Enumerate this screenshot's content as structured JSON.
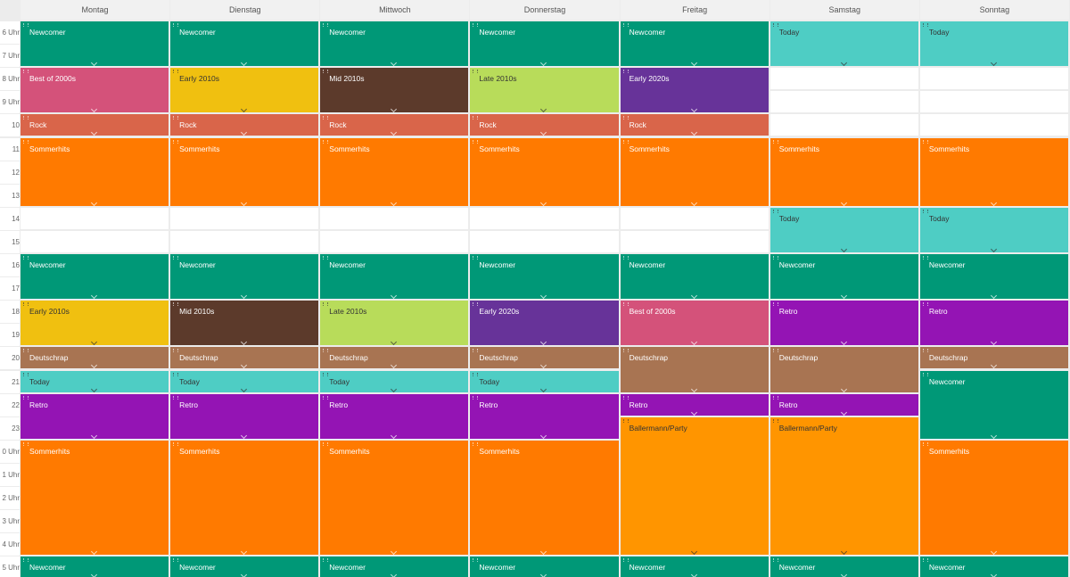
{
  "days": [
    "Montag",
    "Dienstag",
    "Mittwoch",
    "Donnerstag",
    "Freitag",
    "Samstag",
    "Sonntag"
  ],
  "hours": [
    "6 Uhr",
    "7 Uhr",
    "8 Uhr",
    "9 Uhr",
    "10 Uhr",
    "11 Uhr",
    "12 Uhr",
    "13 Uhr",
    "14 Uhr",
    "15 Uhr",
    "16 Uhr",
    "17 Uhr",
    "18 Uhr",
    "19 Uhr",
    "20 Uhr",
    "21 Uhr",
    "22 Uhr",
    "23 Uhr",
    "0 Uhr",
    "1 Uhr",
    "2 Uhr",
    "3 Uhr",
    "4 Uhr",
    "5 Uhr"
  ],
  "schedule": [
    [
      {
        "label": "Newcomer",
        "hours": 2,
        "color": "#009877"
      },
      {
        "label": "Best of 2000s",
        "hours": 2,
        "color": "#d4527a"
      },
      {
        "label": "Rock",
        "hours": 1,
        "color": "#d9654a"
      },
      {
        "label": "Sommerhits",
        "hours": 3,
        "color": "#ff7a00"
      },
      {
        "hours": 2
      },
      {
        "label": "Newcomer",
        "hours": 2,
        "color": "#009877"
      },
      {
        "label": "Early 2010s",
        "hours": 2,
        "color": "#f0c010"
      },
      {
        "label": "Deutschrap",
        "hours": 1,
        "color": "#a87452"
      },
      {
        "label": "Today",
        "hours": 1,
        "color": "#4ecdc4"
      },
      {
        "label": "Retro",
        "hours": 2,
        "color": "#9414b4"
      },
      {
        "label": "Sommerhits",
        "hours": 5,
        "color": "#ff7a00"
      },
      {
        "label": "Newcomer",
        "hours": 1,
        "color": "#009877"
      }
    ],
    [
      {
        "label": "Newcomer",
        "hours": 2,
        "color": "#009877"
      },
      {
        "label": "Early 2010s",
        "hours": 2,
        "color": "#f0c010"
      },
      {
        "label": "Rock",
        "hours": 1,
        "color": "#d9654a"
      },
      {
        "label": "Sommerhits",
        "hours": 3,
        "color": "#ff7a00"
      },
      {
        "hours": 2
      },
      {
        "label": "Newcomer",
        "hours": 2,
        "color": "#009877"
      },
      {
        "label": "Mid 2010s",
        "hours": 2,
        "color": "#5c3a2b"
      },
      {
        "label": "Deutschrap",
        "hours": 1,
        "color": "#a87452"
      },
      {
        "label": "Today",
        "hours": 1,
        "color": "#4ecdc4"
      },
      {
        "label": "Retro",
        "hours": 2,
        "color": "#9414b4"
      },
      {
        "label": "Sommerhits",
        "hours": 5,
        "color": "#ff7a00"
      },
      {
        "label": "Newcomer",
        "hours": 1,
        "color": "#009877"
      }
    ],
    [
      {
        "label": "Newcomer",
        "hours": 2,
        "color": "#009877"
      },
      {
        "label": "Mid 2010s",
        "hours": 2,
        "color": "#5c3a2b"
      },
      {
        "label": "Rock",
        "hours": 1,
        "color": "#d9654a"
      },
      {
        "label": "Sommerhits",
        "hours": 3,
        "color": "#ff7a00"
      },
      {
        "hours": 2
      },
      {
        "label": "Newcomer",
        "hours": 2,
        "color": "#009877"
      },
      {
        "label": "Late 2010s",
        "hours": 2,
        "color": "#b8dc5a"
      },
      {
        "label": "Deutschrap",
        "hours": 1,
        "color": "#a87452"
      },
      {
        "label": "Today",
        "hours": 1,
        "color": "#4ecdc4"
      },
      {
        "label": "Retro",
        "hours": 2,
        "color": "#9414b4"
      },
      {
        "label": "Sommerhits",
        "hours": 5,
        "color": "#ff7a00"
      },
      {
        "label": "Newcomer",
        "hours": 1,
        "color": "#009877"
      }
    ],
    [
      {
        "label": "Newcomer",
        "hours": 2,
        "color": "#009877"
      },
      {
        "label": "Late 2010s",
        "hours": 2,
        "color": "#b8dc5a"
      },
      {
        "label": "Rock",
        "hours": 1,
        "color": "#d9654a"
      },
      {
        "label": "Sommerhits",
        "hours": 3,
        "color": "#ff7a00"
      },
      {
        "hours": 2
      },
      {
        "label": "Newcomer",
        "hours": 2,
        "color": "#009877"
      },
      {
        "label": "Early 2020s",
        "hours": 2,
        "color": "#673399"
      },
      {
        "label": "Deutschrap",
        "hours": 1,
        "color": "#a87452"
      },
      {
        "label": "Today",
        "hours": 1,
        "color": "#4ecdc4"
      },
      {
        "label": "Retro",
        "hours": 2,
        "color": "#9414b4"
      },
      {
        "label": "Sommerhits",
        "hours": 5,
        "color": "#ff7a00"
      },
      {
        "label": "Newcomer",
        "hours": 1,
        "color": "#009877"
      }
    ],
    [
      {
        "label": "Newcomer",
        "hours": 2,
        "color": "#009877"
      },
      {
        "label": "Early 2020s",
        "hours": 2,
        "color": "#673399"
      },
      {
        "label": "Rock",
        "hours": 1,
        "color": "#d9654a"
      },
      {
        "label": "Sommerhits",
        "hours": 3,
        "color": "#ff7a00"
      },
      {
        "hours": 2
      },
      {
        "label": "Newcomer",
        "hours": 2,
        "color": "#009877"
      },
      {
        "label": "Best of 2000s",
        "hours": 2,
        "color": "#d4527a"
      },
      {
        "label": "Deutschrap",
        "hours": 2,
        "color": "#a87452"
      },
      {
        "label": "Retro",
        "hours": 1,
        "color": "#9414b4"
      },
      {
        "label": "Ballermann/Party",
        "hours": 6,
        "color": "#ff9500"
      },
      {
        "label": "Newcomer",
        "hours": 1,
        "color": "#009877"
      }
    ],
    [
      {
        "label": "Today",
        "hours": 2,
        "color": "#4ecdc4"
      },
      {
        "hours": 3
      },
      {
        "label": "Sommerhits",
        "hours": 3,
        "color": "#ff7a00"
      },
      {
        "label": "Today",
        "hours": 2,
        "color": "#4ecdc4"
      },
      {
        "label": "Newcomer",
        "hours": 2,
        "color": "#009877"
      },
      {
        "label": "Retro",
        "hours": 2,
        "color": "#9414b4"
      },
      {
        "label": "Deutschrap",
        "hours": 2,
        "color": "#a87452"
      },
      {
        "label": "Retro",
        "hours": 1,
        "color": "#9414b4"
      },
      {
        "label": "Ballermann/Party",
        "hours": 6,
        "color": "#ff9500"
      },
      {
        "label": "Newcomer",
        "hours": 1,
        "color": "#009877"
      }
    ],
    [
      {
        "label": "Today",
        "hours": 2,
        "color": "#4ecdc4"
      },
      {
        "hours": 3
      },
      {
        "label": "Sommerhits",
        "hours": 3,
        "color": "#ff7a00"
      },
      {
        "label": "Today",
        "hours": 2,
        "color": "#4ecdc4"
      },
      {
        "label": "Newcomer",
        "hours": 2,
        "color": "#009877"
      },
      {
        "label": "Retro",
        "hours": 2,
        "color": "#9414b4"
      },
      {
        "label": "Deutschrap",
        "hours": 1,
        "color": "#a87452"
      },
      {
        "label": "Newcomer",
        "hours": 3,
        "color": "#009877"
      },
      {
        "label": "Sommerhits",
        "hours": 5,
        "color": "#ff7a00"
      },
      {
        "label": "Newcomer",
        "hours": 1,
        "color": "#009877"
      }
    ]
  ]
}
